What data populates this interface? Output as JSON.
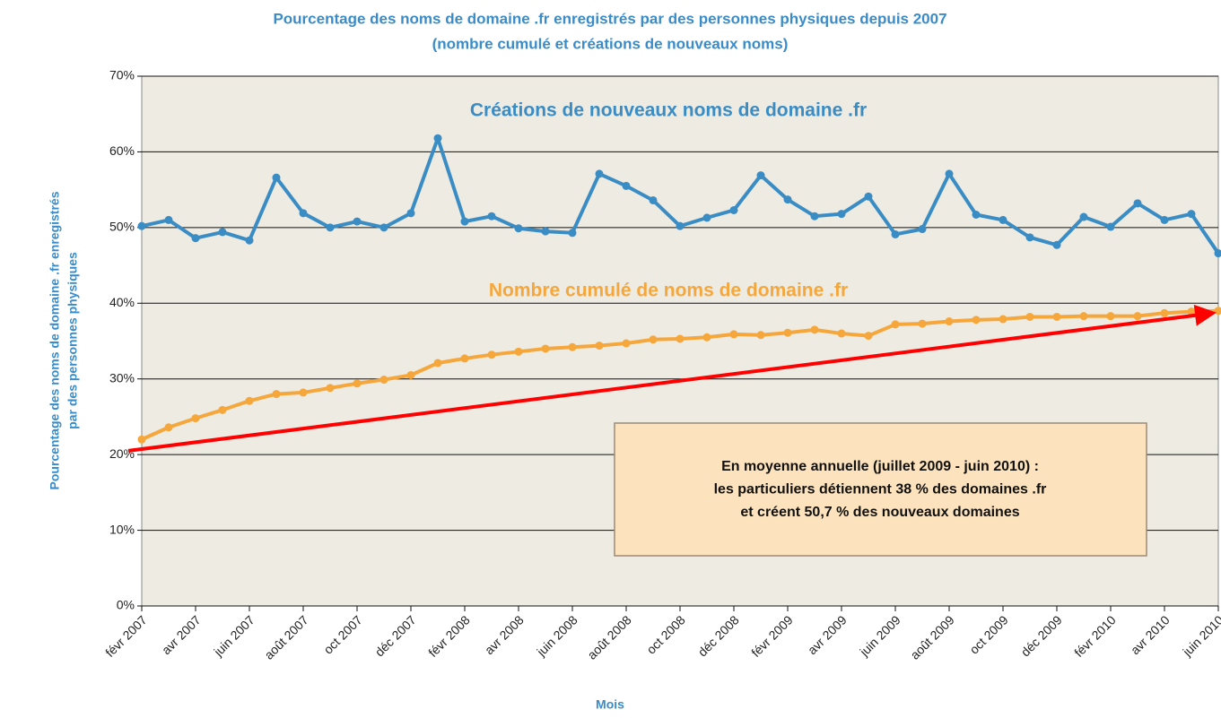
{
  "chart_data": {
    "type": "line",
    "title": "Pourcentage des noms de domaine .fr  enregistrés par des personnes physiques depuis 2007",
    "subtitle": "(nombre cumulé et créations de nouveaux noms)",
    "y_axis_label": [
      "Pourcentage des noms de domaine .fr enregistrés",
      "par des personnes physiques"
    ],
    "x_axis_label": "Mois",
    "categories": [
      "févr 2007",
      null,
      "avr 2007",
      null,
      "juin 2007",
      null,
      "août 2007",
      null,
      "oct 2007",
      null,
      "déc 2007",
      null,
      "févr 2008",
      null,
      "avr 2008",
      null,
      "juin 2008",
      null,
      "août 2008",
      null,
      "oct 2008",
      null,
      "déc 2008",
      null,
      "févr 2009",
      null,
      "avr 2009",
      null,
      "juin 2009",
      null,
      "août 2009",
      null,
      "oct 2009",
      null,
      "déc 2009",
      null,
      "févr 2010",
      null,
      "avr 2010",
      null,
      "juin 2010"
    ],
    "series": [
      {
        "name": "Créations de nouveaux noms de domaine .fr",
        "color": "#3a8cc4",
        "values": [
          50.2,
          51.0,
          48.6,
          49.4,
          48.3,
          56.6,
          51.9,
          50.0,
          50.8,
          50.0,
          51.9,
          61.8,
          50.8,
          51.5,
          49.9,
          49.5,
          49.3,
          57.1,
          55.5,
          53.6,
          50.2,
          51.3,
          52.3,
          56.9,
          53.7,
          51.5,
          51.8,
          54.1,
          49.1,
          49.8,
          57.1,
          51.7,
          51.0,
          48.7,
          47.7,
          51.4,
          50.1,
          53.2,
          51.0,
          51.8,
          46.6
        ]
      },
      {
        "name": "Nombre cumulé de noms de domaine .fr",
        "color": "#f5a73b",
        "values": [
          22.0,
          23.6,
          24.8,
          25.9,
          27.1,
          28.0,
          28.2,
          28.8,
          29.4,
          29.9,
          30.5,
          32.1,
          32.7,
          33.2,
          33.6,
          34.0,
          34.2,
          34.4,
          34.7,
          35.2,
          35.3,
          35.5,
          35.9,
          35.8,
          36.1,
          36.5,
          36.0,
          35.7,
          37.2,
          37.3,
          37.6,
          37.8,
          37.9,
          38.2,
          38.2,
          38.3,
          38.3,
          38.3,
          38.7,
          38.9,
          39.0
        ]
      }
    ],
    "trend": {
      "color": "#ff0000",
      "values": [
        20.5,
        38.7
      ]
    },
    "annotation": [
      "En moyenne annuelle (juillet 2009 - juin 2010) :",
      "les particuliers détiennent 38 % des domaines .fr",
      "et créent 50,7 % des nouveaux domaines"
    ],
    "ylim": [
      0,
      70
    ],
    "yticks": [
      {
        "value": 0,
        "label": "0%"
      },
      {
        "value": 10,
        "label": "10%"
      },
      {
        "value": 20,
        "label": "20%"
      },
      {
        "value": 30,
        "label": "30%"
      },
      {
        "value": 40,
        "label": "40%"
      },
      {
        "value": 50,
        "label": "50%"
      },
      {
        "value": 60,
        "label": "60%"
      },
      {
        "value": 70,
        "label": "70%"
      }
    ],
    "grid": true,
    "plot_background": "#eeebe3"
  }
}
